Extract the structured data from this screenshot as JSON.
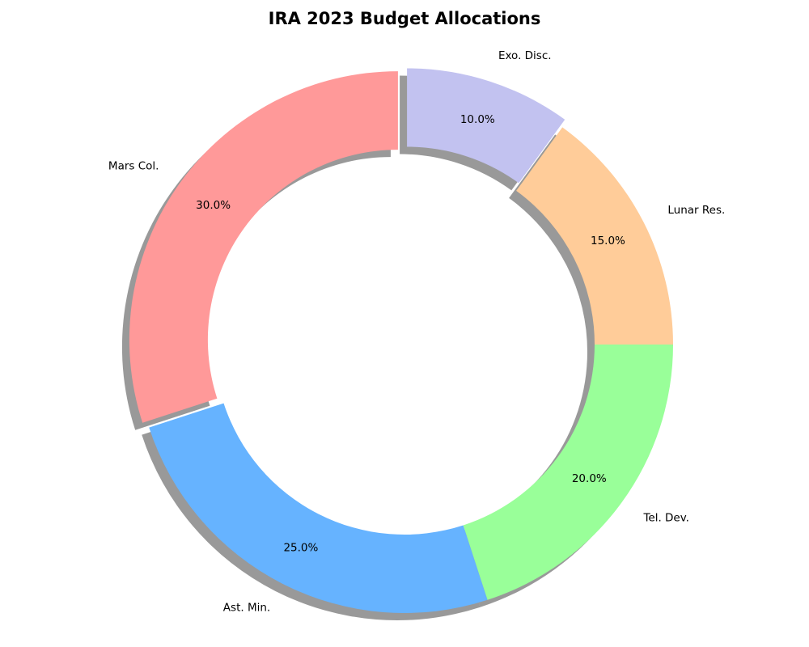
{
  "chart_data": {
    "type": "pie",
    "variant": "donut",
    "title": "IRA 2023 Budget Allocations",
    "categories": [
      "Mars Col.",
      "Ast. Min.",
      "Tel. Dev.",
      "Lunar Res.",
      "Exo. Disc."
    ],
    "values": [
      30,
      25,
      20,
      15,
      10
    ],
    "percent_labels": [
      "30.0%",
      "25.0%",
      "20.0%",
      "15.0%",
      "10.0%"
    ],
    "colors": [
      "#ff9999",
      "#66b3ff",
      "#99ff99",
      "#ffcc99",
      "#c2c2f0"
    ],
    "exploded": [
      "Mars Col.",
      "Exo. Disc."
    ],
    "shadow": true,
    "start_angle_deg": 90,
    "direction": "counterclockwise",
    "legend": "none"
  }
}
